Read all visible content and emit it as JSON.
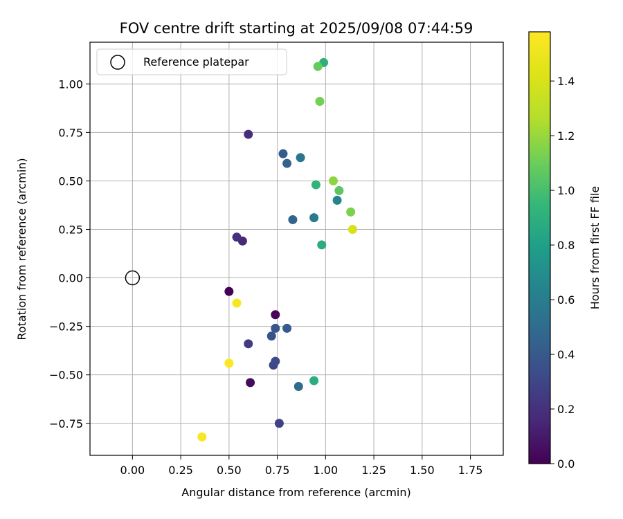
{
  "chart_data": {
    "type": "scatter",
    "title": "FOV centre drift starting at 2025/09/08 07:44:59",
    "xlabel": "Angular distance from reference (arcmin)",
    "ylabel": "Rotation from reference (arcmin)",
    "xlim": [
      -0.22,
      1.92
    ],
    "ylim": [
      -0.915,
      1.215
    ],
    "xticks": [
      0.0,
      0.25,
      0.5,
      0.75,
      1.0,
      1.25,
      1.5,
      1.75
    ],
    "xtick_labels": [
      "0.00",
      "0.25",
      "0.50",
      "0.75",
      "1.00",
      "1.25",
      "1.50",
      "1.75"
    ],
    "yticks": [
      -0.75,
      -0.5,
      -0.25,
      0.0,
      0.25,
      0.5,
      0.75,
      1.0
    ],
    "ytick_labels": [
      "−0.75",
      "−0.50",
      "−0.25",
      "0.00",
      "0.25",
      "0.50",
      "0.75",
      "1.00"
    ],
    "grid": true,
    "legend": {
      "position": "top-left",
      "label": "Reference platepar"
    },
    "reference_point": {
      "x": 0.0,
      "y": 0.0
    },
    "colorbar": {
      "label": "Hours from first FF file",
      "colormap": "viridis",
      "range": [
        0.0,
        1.58
      ],
      "ticks": [
        0.0,
        0.2,
        0.4,
        0.6,
        0.8,
        1.0,
        1.2,
        1.4
      ],
      "tick_labels": [
        "0.0",
        "0.2",
        "0.4",
        "0.6",
        "0.8",
        "1.0",
        "1.2",
        "1.4"
      ]
    },
    "points": [
      {
        "x": 0.5,
        "y": -0.07,
        "hours": 0.0
      },
      {
        "x": 0.74,
        "y": -0.19,
        "hours": 0.02
      },
      {
        "x": 0.61,
        "y": -0.54,
        "hours": 0.04
      },
      {
        "x": 0.57,
        "y": 0.19,
        "hours": 0.16
      },
      {
        "x": 0.6,
        "y": 0.74,
        "hours": 0.18
      },
      {
        "x": 0.54,
        "y": 0.21,
        "hours": 0.2
      },
      {
        "x": 0.6,
        "y": -0.34,
        "hours": 0.25
      },
      {
        "x": 0.76,
        "y": -0.75,
        "hours": 0.28
      },
      {
        "x": 0.73,
        "y": -0.45,
        "hours": 0.3
      },
      {
        "x": 0.74,
        "y": -0.43,
        "hours": 0.33
      },
      {
        "x": 0.72,
        "y": -0.3,
        "hours": 0.36
      },
      {
        "x": 0.74,
        "y": -0.26,
        "hours": 0.38
      },
      {
        "x": 0.8,
        "y": -0.26,
        "hours": 0.4
      },
      {
        "x": 0.78,
        "y": 0.64,
        "hours": 0.42
      },
      {
        "x": 0.8,
        "y": 0.59,
        "hours": 0.44
      },
      {
        "x": 0.83,
        "y": 0.3,
        "hours": 0.46
      },
      {
        "x": 0.86,
        "y": -0.56,
        "hours": 0.5
      },
      {
        "x": 0.87,
        "y": 0.62,
        "hours": 0.55
      },
      {
        "x": 0.94,
        "y": 0.31,
        "hours": 0.58
      },
      {
        "x": 1.06,
        "y": 0.4,
        "hours": 0.65
      },
      {
        "x": 0.94,
        "y": -0.53,
        "hours": 0.88
      },
      {
        "x": 0.98,
        "y": 0.17,
        "hours": 0.88
      },
      {
        "x": 0.99,
        "y": 1.11,
        "hours": 0.9
      },
      {
        "x": 0.95,
        "y": 0.48,
        "hours": 0.92
      },
      {
        "x": 1.07,
        "y": 0.45,
        "hours": 1.05
      },
      {
        "x": 0.96,
        "y": 1.09,
        "hours": 1.08
      },
      {
        "x": 0.97,
        "y": 0.91,
        "hours": 1.12
      },
      {
        "x": 1.13,
        "y": 0.34,
        "hours": 1.14
      },
      {
        "x": 1.04,
        "y": 0.5,
        "hours": 1.18
      },
      {
        "x": 1.14,
        "y": 0.25,
        "hours": 1.4
      },
      {
        "x": 0.54,
        "y": -0.13,
        "hours": 1.56
      },
      {
        "x": 0.5,
        "y": -0.44,
        "hours": 1.57
      },
      {
        "x": 0.36,
        "y": -0.82,
        "hours": 1.55
      }
    ]
  }
}
